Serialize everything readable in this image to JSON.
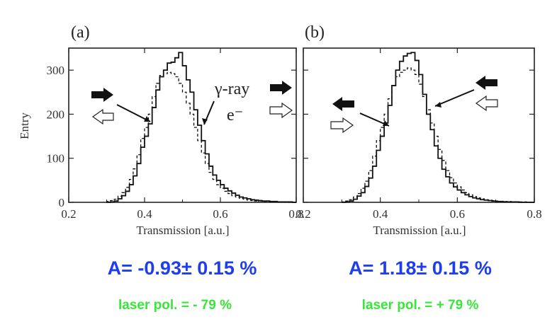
{
  "chart_data": [
    {
      "type": "step-histogram",
      "panel_label": "(a)",
      "xlabel": "Transmission [a.u.]",
      "ylabel": "Entry",
      "xlim": [
        0.2,
        0.8
      ],
      "ylim": [
        0,
        350
      ],
      "x_ticks": [
        "0.2",
        "0.4",
        "0.6",
        "0.8"
      ],
      "y_ticks": [
        "0",
        "100",
        "200",
        "300"
      ],
      "annotations": [
        "γ-ray",
        "e⁻"
      ],
      "bin_edges": [
        0.3,
        0.31,
        0.32,
        0.33,
        0.34,
        0.35,
        0.36,
        0.37,
        0.38,
        0.39,
        0.4,
        0.41,
        0.42,
        0.43,
        0.44,
        0.45,
        0.46,
        0.47,
        0.48,
        0.49,
        0.5,
        0.51,
        0.52,
        0.53,
        0.54,
        0.55,
        0.56,
        0.57,
        0.58,
        0.59,
        0.6,
        0.61,
        0.62,
        0.63,
        0.64,
        0.65,
        0.66,
        0.67,
        0.68,
        0.69,
        0.7,
        0.71,
        0.72,
        0.73,
        0.74,
        0.75,
        0.76,
        0.77,
        0.78,
        0.79,
        0.8
      ],
      "series": [
        {
          "style": "solid",
          "values": [
            0,
            1,
            3,
            8,
            15,
            25,
            40,
            60,
            88,
            125,
            150,
            178,
            215,
            255,
            285,
            300,
            316,
            318,
            328,
            340,
            310,
            278,
            250,
            210,
            175,
            140,
            110,
            82,
            62,
            50,
            40,
            32,
            26,
            21,
            16,
            12,
            10,
            8,
            6,
            5,
            4,
            3,
            3,
            2,
            2,
            1,
            1,
            1,
            1,
            0
          ]
        },
        {
          "style": "dashed",
          "values": [
            2,
            4,
            7,
            14,
            22,
            34,
            52,
            76,
            108,
            145,
            170,
            200,
            240,
            270,
            288,
            292,
            295,
            292,
            285,
            270,
            250,
            225,
            200,
            170,
            140,
            112,
            88,
            68,
            52,
            40,
            32,
            25,
            20,
            15,
            12,
            9,
            7,
            5,
            4,
            3,
            3,
            2,
            2,
            1,
            1,
            1,
            1,
            0,
            0,
            0
          ]
        }
      ]
    },
    {
      "type": "step-histogram",
      "panel_label": "(b)",
      "xlabel": "Transmission [a.u.]",
      "ylabel": "",
      "xlim": [
        0.2,
        0.8
      ],
      "ylim": [
        0,
        350
      ],
      "x_ticks": [
        "0.2",
        "0.4",
        "0.6",
        "0.8"
      ],
      "y_ticks": [],
      "bin_edges": [
        0.3,
        0.31,
        0.32,
        0.33,
        0.34,
        0.35,
        0.36,
        0.37,
        0.38,
        0.39,
        0.4,
        0.41,
        0.42,
        0.43,
        0.44,
        0.45,
        0.46,
        0.47,
        0.48,
        0.49,
        0.5,
        0.51,
        0.52,
        0.53,
        0.54,
        0.55,
        0.56,
        0.57,
        0.58,
        0.59,
        0.6,
        0.61,
        0.62,
        0.63,
        0.64,
        0.65,
        0.66,
        0.67,
        0.68,
        0.69,
        0.7,
        0.71,
        0.72,
        0.73,
        0.74,
        0.75,
        0.76,
        0.77,
        0.78,
        0.79,
        0.8
      ],
      "series": [
        {
          "style": "solid",
          "values": [
            0,
            1,
            3,
            7,
            14,
            22,
            36,
            55,
            82,
            118,
            150,
            180,
            220,
            265,
            300,
            320,
            332,
            338,
            340,
            322,
            290,
            245,
            200,
            165,
            128,
            100,
            75,
            58,
            44,
            35,
            28,
            22,
            17,
            13,
            10,
            8,
            6,
            5,
            4,
            3,
            2,
            2,
            1,
            1,
            1,
            1,
            0,
            0,
            0,
            0
          ]
        },
        {
          "style": "dashed",
          "values": [
            1,
            3,
            6,
            12,
            20,
            32,
            48,
            72,
            105,
            140,
            170,
            200,
            235,
            265,
            285,
            295,
            300,
            305,
            300,
            290,
            268,
            240,
            210,
            180,
            150,
            120,
            95,
            72,
            56,
            44,
            35,
            28,
            22,
            17,
            13,
            10,
            8,
            6,
            5,
            4,
            3,
            2,
            2,
            2,
            1,
            1,
            1,
            1,
            0,
            0
          ]
        }
      ]
    }
  ],
  "results": {
    "a": {
      "asymmetry": "A= -0.93± 0.15 %",
      "laser": "laser pol. = - 79 %"
    },
    "b": {
      "asymmetry": "A= 1.18± 0.15 %",
      "laser": "laser pol. = + 79 %"
    }
  },
  "arrow_colors": {
    "filled": "#000000",
    "open": "#ffffff",
    "accent_blue": "#1e3cf0",
    "accent_green": "#38e63a"
  }
}
